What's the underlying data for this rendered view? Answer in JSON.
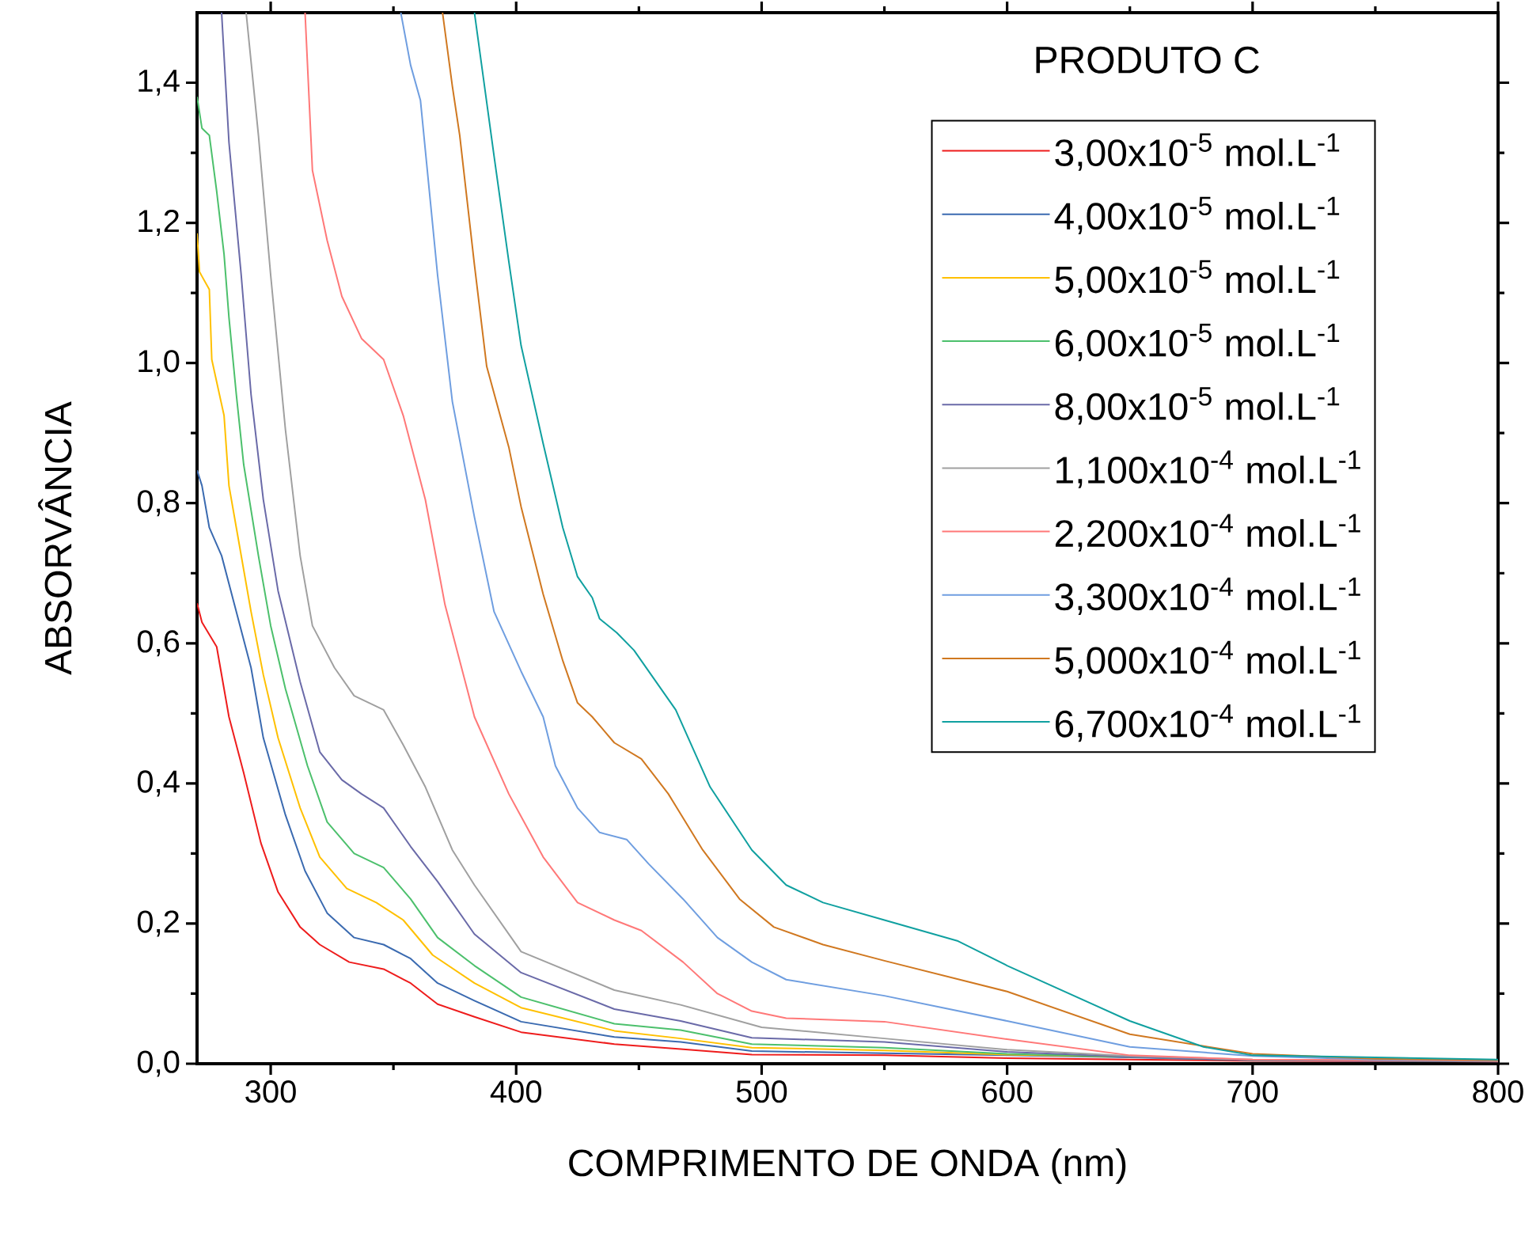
{
  "chart_data": {
    "type": "line",
    "xlabel": "COMPRIMENTO DE ONDA (nm)",
    "ylabel": "ABSORVÂNCIA",
    "legend_title": "PRODUTO C",
    "legend": "top right",
    "xlim": [
      270,
      800
    ],
    "ylim": [
      0,
      1.5
    ],
    "xticks": [
      300,
      400,
      500,
      600,
      700,
      800
    ],
    "yticks": [
      {
        "value": 0,
        "label": "0,0"
      },
      {
        "value": 0.2,
        "label": "0,2"
      },
      {
        "value": 0.4,
        "label": "0,4"
      },
      {
        "value": 0.6,
        "label": "0,6"
      },
      {
        "value": 0.8,
        "label": "0,8"
      },
      {
        "value": 1.0,
        "label": "1,0"
      },
      {
        "value": 1.2,
        "label": "1,2"
      },
      {
        "value": 1.4,
        "label": "1,4"
      }
    ],
    "series": [
      {
        "name": "3,00x10$^{-5}$ mol.L$^{-1}$",
        "color": "#ee1c1c",
        "x": [
          270,
          272,
          278,
          283,
          289,
          296,
          303,
          312,
          320,
          332,
          346,
          357,
          368,
          383,
          402,
          440,
          467,
          496,
          550,
          600,
          650,
          700,
          800
        ],
        "values": [
          0.657,
          0.63,
          0.595,
          0.495,
          0.415,
          0.315,
          0.245,
          0.195,
          0.17,
          0.145,
          0.135,
          0.115,
          0.085,
          0.067,
          0.045,
          0.028,
          0.021,
          0.013,
          0.012,
          0.008,
          0.006,
          0.004,
          0.003
        ]
      },
      {
        "name": "4,00x10$^{-5}$ mol.L$^{-1}$",
        "color": "#3a6ab0",
        "x": [
          270,
          272,
          275,
          280,
          286,
          292,
          297,
          306,
          314,
          323,
          334,
          346,
          357,
          368,
          383,
          402,
          440,
          467,
          496,
          550,
          600,
          650,
          700,
          800
        ],
        "values": [
          0.847,
          0.825,
          0.765,
          0.725,
          0.645,
          0.565,
          0.465,
          0.355,
          0.275,
          0.215,
          0.18,
          0.17,
          0.15,
          0.115,
          0.09,
          0.06,
          0.038,
          0.031,
          0.018,
          0.015,
          0.012,
          0.009,
          0.005,
          0.003
        ]
      },
      {
        "name": "5,00x10$^{-5}$ mol.L$^{-1}$",
        "color": "#ffc000",
        "x": [
          270,
          271,
          275,
          276,
          281,
          283,
          286,
          292,
          297,
          303,
          312,
          320,
          331,
          343,
          354,
          366,
          383,
          402,
          440,
          467,
          496,
          550,
          600,
          650
        ],
        "values": [
          1.185,
          1.13,
          1.105,
          1.005,
          0.925,
          0.825,
          0.765,
          0.645,
          0.555,
          0.465,
          0.365,
          0.295,
          0.25,
          0.23,
          0.205,
          0.155,
          0.115,
          0.08,
          0.047,
          0.036,
          0.023,
          0.019,
          0.013,
          0.01
        ]
      },
      {
        "name": "6,00x10$^{-5}$ mol.L$^{-1}$",
        "color": "#4cc06c",
        "x": [
          270,
          272,
          275,
          278,
          281,
          283,
          286,
          289,
          295,
          300,
          306,
          315,
          323,
          334,
          346,
          357,
          368,
          383,
          402,
          440,
          467,
          496,
          550,
          600,
          650,
          700,
          800
        ],
        "values": [
          1.38,
          1.335,
          1.325,
          1.245,
          1.155,
          1.065,
          0.955,
          0.855,
          0.725,
          0.625,
          0.535,
          0.425,
          0.345,
          0.3,
          0.28,
          0.235,
          0.18,
          0.14,
          0.095,
          0.057,
          0.048,
          0.028,
          0.023,
          0.014,
          0.01,
          0.005,
          0.004
        ]
      },
      {
        "name": "8,00x10$^{-5}$ mol.L$^{-1}$",
        "color": "#6a6aa8",
        "x": [
          280,
          283,
          288,
          292,
          297,
          303,
          312,
          320,
          329,
          337,
          346,
          357,
          368,
          383,
          402,
          440,
          467,
          496,
          550,
          600,
          650,
          700,
          800
        ],
        "values": [
          1.5,
          1.315,
          1.125,
          0.955,
          0.805,
          0.675,
          0.545,
          0.445,
          0.405,
          0.385,
          0.365,
          0.31,
          0.26,
          0.185,
          0.13,
          0.078,
          0.061,
          0.037,
          0.031,
          0.017,
          0.01,
          0.005,
          0.004
        ]
      },
      {
        "name": "1,100x10$^{-4}$ mol.L$^{-1}$",
        "color": "#a0a0a0",
        "x": [
          290,
          295,
          300,
          306,
          312,
          317,
          326,
          334,
          346,
          354,
          363,
          374,
          383,
          402,
          440,
          467,
          500,
          550,
          600,
          650,
          700,
          800
        ],
        "values": [
          1.5,
          1.325,
          1.125,
          0.905,
          0.725,
          0.625,
          0.565,
          0.525,
          0.505,
          0.455,
          0.395,
          0.305,
          0.255,
          0.16,
          0.105,
          0.084,
          0.052,
          0.036,
          0.02,
          0.011,
          0.006,
          0.004
        ]
      },
      {
        "name": "2,200x10$^{-4}$ mol.L$^{-1}$",
        "color": "#ff7878",
        "x": [
          314,
          317,
          323,
          329,
          337,
          346,
          354,
          363,
          371,
          380,
          383,
          397,
          411,
          425,
          440,
          451,
          468,
          482,
          496,
          510,
          550,
          600,
          650,
          700,
          800
        ],
        "values": [
          1.5,
          1.275,
          1.175,
          1.095,
          1.035,
          1.005,
          0.925,
          0.805,
          0.655,
          0.535,
          0.495,
          0.385,
          0.295,
          0.23,
          0.205,
          0.19,
          0.145,
          0.1,
          0.075,
          0.065,
          0.06,
          0.035,
          0.012,
          0.006,
          0.004
        ]
      },
      {
        "name": "3,300x10$^{-4}$ mol.L$^{-1}$",
        "color": "#6f9ee0",
        "x": [
          353,
          357,
          361,
          368,
          374,
          383,
          391,
          402,
          411,
          416,
          425,
          434,
          445,
          454,
          468,
          482,
          496,
          510,
          550,
          600,
          650,
          700,
          750,
          800
        ],
        "values": [
          1.5,
          1.425,
          1.375,
          1.125,
          0.945,
          0.78,
          0.645,
          0.56,
          0.495,
          0.425,
          0.365,
          0.33,
          0.32,
          0.285,
          0.235,
          0.18,
          0.145,
          0.12,
          0.097,
          0.061,
          0.024,
          0.011,
          0.006,
          0.005
        ]
      },
      {
        "name": "5,000x10$^{-4}$ mol.L$^{-1}$",
        "color": "#d07820",
        "x": [
          370,
          374,
          377,
          383,
          388,
          397,
          402,
          411,
          419,
          425,
          431,
          440,
          451,
          462,
          476,
          491,
          505,
          525,
          550,
          600,
          650,
          700,
          750,
          800
        ],
        "values": [
          1.5,
          1.395,
          1.325,
          1.14,
          0.995,
          0.88,
          0.795,
          0.67,
          0.575,
          0.515,
          0.495,
          0.458,
          0.435,
          0.385,
          0.305,
          0.235,
          0.195,
          0.17,
          0.147,
          0.103,
          0.042,
          0.014,
          0.007,
          0.005
        ]
      },
      {
        "name": "6,700x10$^{-4}$ mol.L$^{-1}$",
        "color": "#10a0a0",
        "x": [
          383,
          391,
          397,
          402,
          411,
          419,
          425,
          431,
          434,
          441,
          448,
          465,
          479,
          496,
          510,
          525,
          550,
          580,
          600,
          650,
          680,
          700,
          800
        ],
        "values": [
          1.5,
          1.295,
          1.145,
          1.025,
          0.885,
          0.765,
          0.695,
          0.665,
          0.635,
          0.615,
          0.59,
          0.505,
          0.395,
          0.305,
          0.255,
          0.23,
          0.205,
          0.175,
          0.14,
          0.061,
          0.024,
          0.012,
          0.006
        ]
      }
    ]
  }
}
